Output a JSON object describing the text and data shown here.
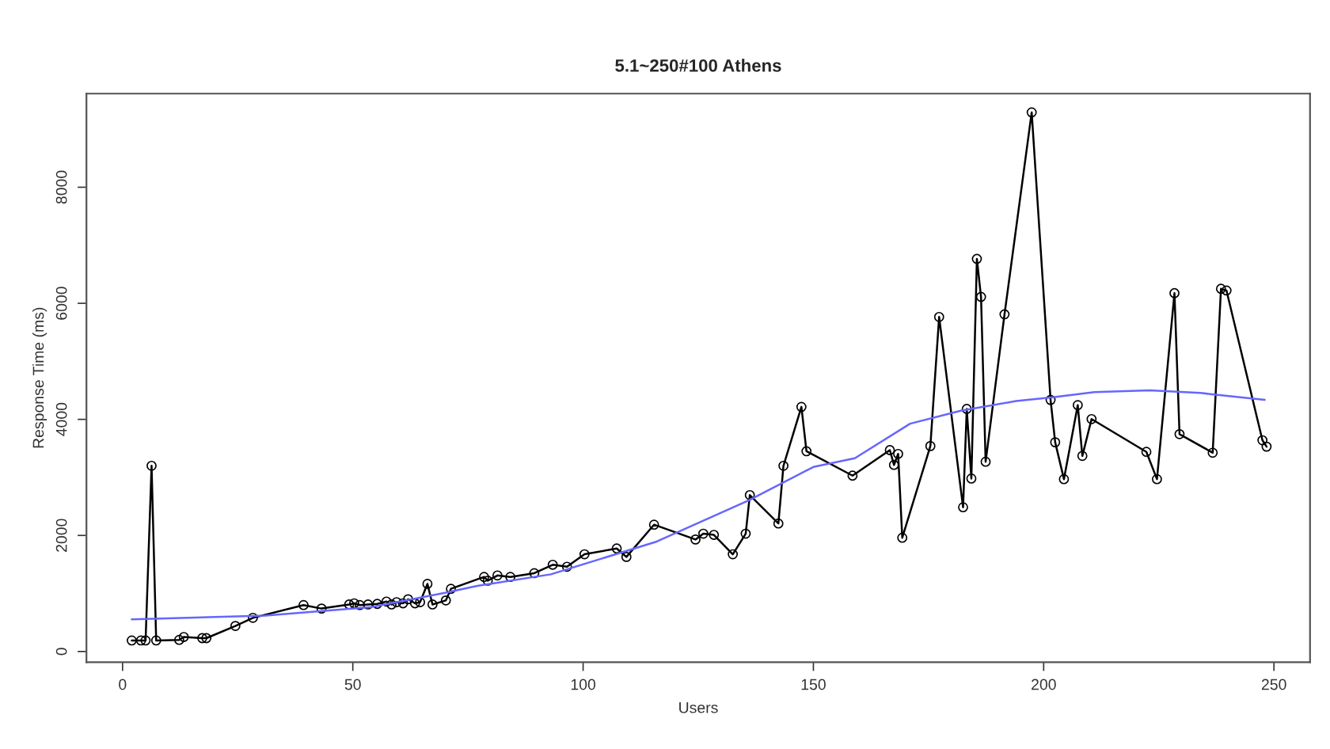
{
  "chart_data": {
    "type": "line",
    "title": "5.1~250#100 Athens",
    "xlabel": "Users",
    "ylabel": "Response Time (ms)",
    "xlim": [
      -7.84,
      257.84
    ],
    "xticks": [
      0,
      50,
      100,
      150,
      200,
      250
    ],
    "ylim": [
      -183,
      9613
    ],
    "yticks": [
      0,
      2000,
      4000,
      6000,
      8000
    ],
    "grid": false,
    "line_style": "solid",
    "series": [
      {
        "color": "#000000",
        "marker": "circle",
        "x": [
          2,
          4,
          5,
          6.3,
          7.3,
          12.3,
          13.3,
          17.3,
          18.2,
          24.5,
          28.3,
          39.3,
          43.2,
          49.2,
          50.3,
          51.5,
          53.3,
          55.3,
          57.3,
          58.4,
          59.5,
          60.9,
          62,
          63.5,
          64.6,
          66.2,
          67.3,
          70.2,
          71.3,
          78.5,
          79.3,
          81.4,
          84.2,
          89.4,
          93.4,
          96.5,
          100.3,
          107.3,
          109.4,
          115.4,
          124.4,
          126.1,
          128.4,
          132.5,
          135.3,
          136.2,
          142.4,
          143.5,
          147.4,
          148.5,
          158.5,
          166.6,
          167.5,
          168.4,
          169.3,
          175.4,
          177.3,
          182.5,
          183.3,
          184.3,
          185.5,
          186.4,
          187.4,
          191.5,
          197.4,
          201.5,
          202.5,
          204.4,
          207.4,
          208.4,
          210.4,
          222.3,
          224.6,
          228.4,
          229.5,
          236.7,
          238.5,
          239.7,
          247.5,
          248.4
        ],
        "values": [
          190,
          190,
          190,
          3200,
          190,
          200,
          250,
          230,
          230,
          440,
          580,
          800,
          740,
          810,
          830,
          800,
          810,
          820,
          860,
          810,
          850,
          830,
          900,
          830,
          850,
          1165,
          810,
          880,
          1080,
          1285,
          1220,
          1310,
          1285,
          1350,
          1495,
          1460,
          1675,
          1775,
          1630,
          2185,
          1930,
          2030,
          2010,
          1675,
          2030,
          2695,
          2205,
          3200,
          4215,
          3450,
          3030,
          3470,
          3215,
          3405,
          1960,
          3540,
          5765,
          2485,
          4180,
          2980,
          6765,
          6110,
          3270,
          5810,
          9290,
          4335,
          3605,
          2970,
          4245,
          3370,
          4005,
          3440,
          2970,
          6175,
          3745,
          3425,
          6250,
          6220,
          3640,
          3530
        ]
      },
      {
        "color": "#6666ff",
        "marker": "none",
        "x": [
          2,
          31,
          54,
          70,
          77,
          93,
          116,
          136,
          150,
          159,
          171,
          182,
          194,
          202,
          211,
          223,
          234,
          248
        ],
        "values": [
          555,
          620,
          765,
          1010,
          1130,
          1330,
          1895,
          2605,
          3180,
          3330,
          3925,
          4150,
          4315,
          4380,
          4470,
          4500,
          4455,
          4335
        ]
      }
    ]
  }
}
